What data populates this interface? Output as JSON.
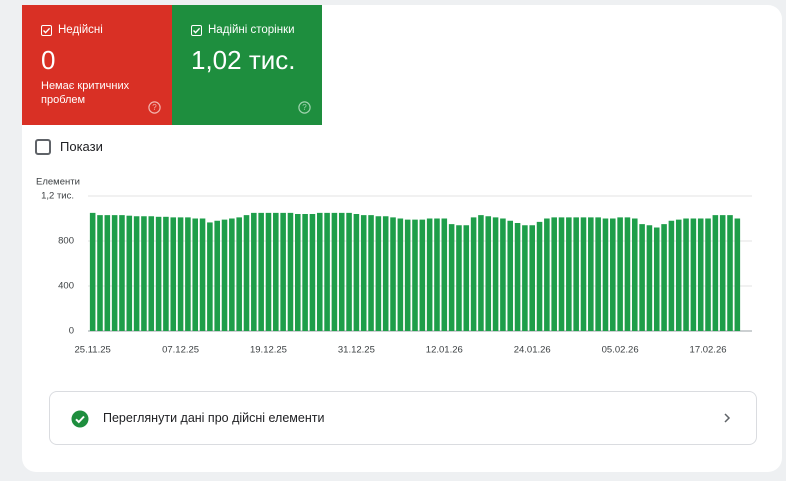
{
  "tiles": [
    {
      "title": "Недійсні",
      "value": "0",
      "subtitle": "Немає критичних проблем"
    },
    {
      "title": "Надійні сторінки",
      "value": "1,02 тис."
    }
  ],
  "toggle": "Покази",
  "link": "Переглянути дані про дійсні елементи",
  "chart_data": {
    "type": "bar",
    "y_label": "Елементи",
    "color": "#1e9e4a",
    "grid": true,
    "ylim": [
      0,
      1200
    ],
    "yticks": [
      0,
      400,
      800,
      {
        "value": 1200,
        "label": "1,2 тис."
      }
    ],
    "categories": [
      "25.11.25",
      null,
      null,
      null,
      null,
      null,
      null,
      null,
      null,
      null,
      null,
      null,
      "07.12.25",
      null,
      null,
      null,
      null,
      null,
      null,
      null,
      null,
      null,
      null,
      null,
      "19.12.25",
      null,
      null,
      null,
      null,
      null,
      null,
      null,
      null,
      null,
      null,
      null,
      "31.12.25",
      null,
      null,
      null,
      null,
      null,
      null,
      null,
      null,
      null,
      null,
      null,
      "12.01.26",
      null,
      null,
      null,
      null,
      null,
      null,
      null,
      null,
      null,
      null,
      null,
      "24.01.26",
      null,
      null,
      null,
      null,
      null,
      null,
      null,
      null,
      null,
      null,
      null,
      "05.02.26",
      null,
      null,
      null,
      null,
      null,
      null,
      null,
      null,
      null,
      null,
      null,
      "17.02.26",
      null,
      null,
      null,
      null
    ],
    "values": [
      1050,
      1030,
      1030,
      1030,
      1030,
      1025,
      1020,
      1020,
      1020,
      1015,
      1015,
      1010,
      1010,
      1010,
      1000,
      1000,
      965,
      980,
      990,
      1000,
      1010,
      1030,
      1050,
      1050,
      1050,
      1050,
      1050,
      1050,
      1040,
      1040,
      1040,
      1050,
      1050,
      1050,
      1050,
      1050,
      1040,
      1030,
      1030,
      1020,
      1020,
      1010,
      1000,
      990,
      990,
      990,
      1000,
      1000,
      1000,
      950,
      940,
      940,
      1010,
      1030,
      1020,
      1010,
      1000,
      980,
      960,
      940,
      940,
      970,
      1000,
      1010,
      1010,
      1010,
      1010,
      1010,
      1010,
      1010,
      1000,
      1000,
      1010,
      1010,
      1000,
      950,
      940,
      920,
      950,
      980,
      990,
      1000,
      1000,
      1000,
      1000,
      1030,
      1030,
      1030,
      1000
    ]
  }
}
